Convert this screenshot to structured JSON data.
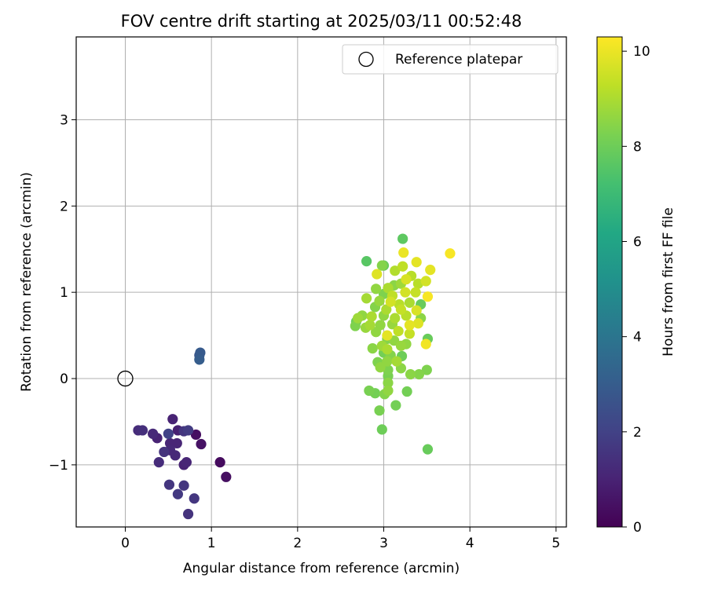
{
  "chart_data": {
    "type": "scatter",
    "title": "FOV centre drift starting at 2025/03/11 00:52:48",
    "xlabel": "Angular distance from reference (arcmin)",
    "ylabel": "Rotation from reference (arcmin)",
    "xlim": [
      -0.57,
      5.12
    ],
    "ylim": [
      -1.72,
      3.96
    ],
    "xticks": [
      0,
      1,
      2,
      3,
      4,
      5
    ],
    "yticks": [
      -1,
      0,
      1,
      2,
      3
    ],
    "grid": true,
    "legend": {
      "position": "top-right",
      "entries": [
        "Reference platepar"
      ]
    },
    "reference_point": {
      "x": 0,
      "y": 0,
      "marker": "open-circle",
      "label": "Reference platepar"
    },
    "colorbar": {
      "label": "Hours from first FF file",
      "range": [
        0,
        10.3
      ],
      "ticks": [
        0,
        2,
        4,
        6,
        8,
        10
      ],
      "colormap": "viridis"
    },
    "points": [
      {
        "x": 0.15,
        "y": -0.6,
        "hours": 1.3
      },
      {
        "x": 0.2,
        "y": -0.6,
        "hours": 1.4
      },
      {
        "x": 0.32,
        "y": -0.64,
        "hours": 1.2
      },
      {
        "x": 0.37,
        "y": -0.69,
        "hours": 1.0
      },
      {
        "x": 0.39,
        "y": -0.97,
        "hours": 1.3
      },
      {
        "x": 0.45,
        "y": -0.85,
        "hours": 1.5
      },
      {
        "x": 0.5,
        "y": -0.64,
        "hours": 2.0
      },
      {
        "x": 0.52,
        "y": -0.75,
        "hours": 1.1
      },
      {
        "x": 0.52,
        "y": -0.83,
        "hours": 1.2
      },
      {
        "x": 0.55,
        "y": -0.47,
        "hours": 1.0
      },
      {
        "x": 0.58,
        "y": -0.89,
        "hours": 1.2
      },
      {
        "x": 0.6,
        "y": -0.75,
        "hours": 1.1
      },
      {
        "x": 0.61,
        "y": -0.6,
        "hours": 0.9
      },
      {
        "x": 0.68,
        "y": -0.61,
        "hours": 1.6
      },
      {
        "x": 0.68,
        "y": -1.0,
        "hours": 1.0
      },
      {
        "x": 0.71,
        "y": -0.97,
        "hours": 1.1
      },
      {
        "x": 0.73,
        "y": -0.6,
        "hours": 1.8
      },
      {
        "x": 0.82,
        "y": -0.65,
        "hours": 0.4
      },
      {
        "x": 0.88,
        "y": -0.76,
        "hours": 0.5
      },
      {
        "x": 1.1,
        "y": -0.97,
        "hours": 0.3
      },
      {
        "x": 1.17,
        "y": -1.14,
        "hours": 0.4
      },
      {
        "x": 0.51,
        "y": -1.23,
        "hours": 1.6
      },
      {
        "x": 0.61,
        "y": -1.34,
        "hours": 1.7
      },
      {
        "x": 0.68,
        "y": -1.24,
        "hours": 1.6
      },
      {
        "x": 0.73,
        "y": -1.57,
        "hours": 1.5
      },
      {
        "x": 0.8,
        "y": -1.39,
        "hours": 1.6
      },
      {
        "x": 0.86,
        "y": 0.27,
        "hours": 2.7
      },
      {
        "x": 0.87,
        "y": 0.3,
        "hours": 2.9
      },
      {
        "x": 0.86,
        "y": 0.22,
        "hours": 3.0
      },
      {
        "x": 3.22,
        "y": 1.62,
        "hours": 7.7
      },
      {
        "x": 2.8,
        "y": 1.36,
        "hours": 7.6
      },
      {
        "x": 3.0,
        "y": 1.31,
        "hours": 7.9
      },
      {
        "x": 2.98,
        "y": 1.31,
        "hours": 8.4
      },
      {
        "x": 3.23,
        "y": 1.46,
        "hours": 10.0
      },
      {
        "x": 3.77,
        "y": 1.45,
        "hours": 10.2
      },
      {
        "x": 2.92,
        "y": 1.21,
        "hours": 9.8
      },
      {
        "x": 3.13,
        "y": 1.25,
        "hours": 9.1
      },
      {
        "x": 3.22,
        "y": 1.3,
        "hours": 9.3
      },
      {
        "x": 3.38,
        "y": 1.35,
        "hours": 9.9
      },
      {
        "x": 3.54,
        "y": 1.26,
        "hours": 9.9
      },
      {
        "x": 3.32,
        "y": 1.19,
        "hours": 9.2
      },
      {
        "x": 3.26,
        "y": 1.15,
        "hours": 9.7
      },
      {
        "x": 3.4,
        "y": 1.1,
        "hours": 9.2
      },
      {
        "x": 3.49,
        "y": 1.13,
        "hours": 9.6
      },
      {
        "x": 3.2,
        "y": 1.1,
        "hours": 8.8
      },
      {
        "x": 3.12,
        "y": 1.08,
        "hours": 8.5
      },
      {
        "x": 3.05,
        "y": 1.05,
        "hours": 9.0
      },
      {
        "x": 2.91,
        "y": 1.04,
        "hours": 8.6
      },
      {
        "x": 3.0,
        "y": 0.98,
        "hours": 8.3
      },
      {
        "x": 3.1,
        "y": 0.96,
        "hours": 9.3
      },
      {
        "x": 3.25,
        "y": 1.0,
        "hours": 9.6
      },
      {
        "x": 3.37,
        "y": 1.0,
        "hours": 9.4
      },
      {
        "x": 3.51,
        "y": 0.95,
        "hours": 10.2
      },
      {
        "x": 2.8,
        "y": 0.93,
        "hours": 8.9
      },
      {
        "x": 2.95,
        "y": 0.9,
        "hours": 8.7
      },
      {
        "x": 3.08,
        "y": 0.89,
        "hours": 9.6
      },
      {
        "x": 3.18,
        "y": 0.86,
        "hours": 9.2
      },
      {
        "x": 3.3,
        "y": 0.88,
        "hours": 9.0
      },
      {
        "x": 3.43,
        "y": 0.86,
        "hours": 7.9
      },
      {
        "x": 2.9,
        "y": 0.83,
        "hours": 8.4
      },
      {
        "x": 3.03,
        "y": 0.8,
        "hours": 9.0
      },
      {
        "x": 3.2,
        "y": 0.8,
        "hours": 9.4
      },
      {
        "x": 3.38,
        "y": 0.79,
        "hours": 9.7
      },
      {
        "x": 2.75,
        "y": 0.73,
        "hours": 8.6
      },
      {
        "x": 2.86,
        "y": 0.72,
        "hours": 9.0
      },
      {
        "x": 3.0,
        "y": 0.73,
        "hours": 8.6
      },
      {
        "x": 3.13,
        "y": 0.7,
        "hours": 9.0
      },
      {
        "x": 3.26,
        "y": 0.73,
        "hours": 9.2
      },
      {
        "x": 3.43,
        "y": 0.7,
        "hours": 8.5
      },
      {
        "x": 2.68,
        "y": 0.66,
        "hours": 8.0
      },
      {
        "x": 2.7,
        "y": 0.7,
        "hours": 8.8
      },
      {
        "x": 2.84,
        "y": 0.62,
        "hours": 8.9
      },
      {
        "x": 2.96,
        "y": 0.62,
        "hours": 8.6
      },
      {
        "x": 3.1,
        "y": 0.63,
        "hours": 8.7
      },
      {
        "x": 3.3,
        "y": 0.62,
        "hours": 9.9
      },
      {
        "x": 3.4,
        "y": 0.64,
        "hours": 9.8
      },
      {
        "x": 2.67,
        "y": 0.61,
        "hours": 8.3
      },
      {
        "x": 2.79,
        "y": 0.59,
        "hours": 8.7
      },
      {
        "x": 2.91,
        "y": 0.54,
        "hours": 8.6
      },
      {
        "x": 3.04,
        "y": 0.5,
        "hours": 9.9
      },
      {
        "x": 3.17,
        "y": 0.55,
        "hours": 9.3
      },
      {
        "x": 3.3,
        "y": 0.52,
        "hours": 9.4
      },
      {
        "x": 3.04,
        "y": 0.46,
        "hours": 8.4
      },
      {
        "x": 3.12,
        "y": 0.44,
        "hours": 8.6
      },
      {
        "x": 3.26,
        "y": 0.4,
        "hours": 8.6
      },
      {
        "x": 3.51,
        "y": 0.46,
        "hours": 7.9
      },
      {
        "x": 3.49,
        "y": 0.4,
        "hours": 10.1
      },
      {
        "x": 2.98,
        "y": 0.38,
        "hours": 8.8
      },
      {
        "x": 3.04,
        "y": 0.34,
        "hours": 9.0
      },
      {
        "x": 3.2,
        "y": 0.38,
        "hours": 8.7
      },
      {
        "x": 2.87,
        "y": 0.35,
        "hours": 8.5
      },
      {
        "x": 3.0,
        "y": 0.3,
        "hours": 8.1
      },
      {
        "x": 3.08,
        "y": 0.27,
        "hours": 8.4
      },
      {
        "x": 3.21,
        "y": 0.26,
        "hours": 8.0
      },
      {
        "x": 3.15,
        "y": 0.2,
        "hours": 8.9
      },
      {
        "x": 2.93,
        "y": 0.19,
        "hours": 8.3
      },
      {
        "x": 3.04,
        "y": 0.2,
        "hours": 8.6
      },
      {
        "x": 2.96,
        "y": 0.13,
        "hours": 8.6
      },
      {
        "x": 3.2,
        "y": 0.12,
        "hours": 8.5
      },
      {
        "x": 3.05,
        "y": 0.1,
        "hours": 8.3
      },
      {
        "x": 3.31,
        "y": 0.05,
        "hours": 8.5
      },
      {
        "x": 3.41,
        "y": 0.05,
        "hours": 8.4
      },
      {
        "x": 3.5,
        "y": 0.1,
        "hours": 8.3
      },
      {
        "x": 3.05,
        "y": 0.03,
        "hours": 8.2
      },
      {
        "x": 3.05,
        "y": -0.05,
        "hours": 8.5
      },
      {
        "x": 3.05,
        "y": -0.14,
        "hours": 8.6
      },
      {
        "x": 2.83,
        "y": -0.14,
        "hours": 8.2
      },
      {
        "x": 2.9,
        "y": -0.17,
        "hours": 8.1
      },
      {
        "x": 3.01,
        "y": -0.18,
        "hours": 8.4
      },
      {
        "x": 3.27,
        "y": -0.15,
        "hours": 8.1
      },
      {
        "x": 2.95,
        "y": -0.37,
        "hours": 8.2
      },
      {
        "x": 3.14,
        "y": -0.31,
        "hours": 8.1
      },
      {
        "x": 2.98,
        "y": -0.59,
        "hours": 8.0
      },
      {
        "x": 3.51,
        "y": -0.82,
        "hours": 7.9
      }
    ]
  }
}
